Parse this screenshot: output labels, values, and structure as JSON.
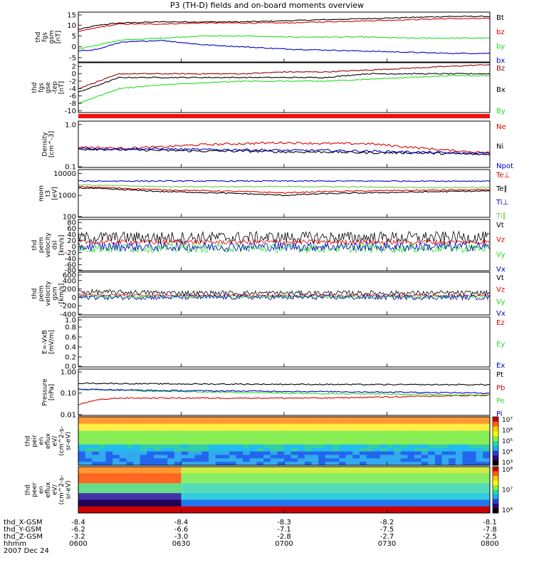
{
  "title": "P3 (TH-D) fields and on-board moments overview",
  "colors": {
    "black": "#000000",
    "red": "#dd0000",
    "green": "#22dd22",
    "blue": "#0000cc",
    "darkred": "#990000",
    "lightgreen": "#66cc44"
  },
  "chart_data": [
    {
      "type": "line",
      "ylabel": [
        "thd",
        "fgs",
        "gsm",
        "[nT]"
      ],
      "yticks": [
        "15",
        "10",
        "5",
        "0",
        "-5"
      ],
      "ylim": [
        -7,
        16
      ],
      "legend": [
        {
          "name": "Bt",
          "color": "#000000"
        },
        {
          "name": "bz",
          "color": "#dd0000"
        },
        {
          "name": "by",
          "color": "#22dd22"
        },
        {
          "name": "bx",
          "color": "#0000cc"
        }
      ],
      "series": [
        {
          "name": "Bt",
          "color": "#000000",
          "x": [
            0,
            0.05,
            0.1,
            0.2,
            0.3,
            0.4,
            0.5,
            0.6,
            0.7,
            0.8,
            0.9,
            1
          ],
          "y": [
            8,
            10,
            11,
            11.5,
            11.5,
            11.5,
            12,
            12.5,
            13,
            13.5,
            14,
            14
          ]
        },
        {
          "name": "bz",
          "color": "#dd0000",
          "x": [
            0,
            0.05,
            0.1,
            0.2,
            0.3,
            0.4,
            0.5,
            0.6,
            0.7,
            0.8,
            0.9,
            1
          ],
          "y": [
            7,
            9,
            10.5,
            10.5,
            11,
            11,
            11,
            11.5,
            12,
            12.5,
            13,
            13
          ]
        },
        {
          "name": "by",
          "color": "#22dd22",
          "x": [
            0,
            0.05,
            0.1,
            0.2,
            0.3,
            0.4,
            0.5,
            0.6,
            0.7,
            0.8,
            0.9,
            1
          ],
          "y": [
            -1,
            1,
            3,
            4,
            5,
            5,
            4.5,
            4.5,
            4.5,
            4,
            4,
            4
          ]
        },
        {
          "name": "bx",
          "color": "#0000cc",
          "x": [
            0,
            0.05,
            0.1,
            0.2,
            0.3,
            0.4,
            0.5,
            0.6,
            0.7,
            0.8,
            0.9,
            1
          ],
          "y": [
            -2,
            -1,
            2,
            3,
            1,
            0,
            -1,
            -1.5,
            -2,
            -2.5,
            -3,
            -3
          ]
        }
      ]
    },
    {
      "type": "line",
      "ylabel": [
        "thd",
        "fgs",
        "gse",
        "-tep",
        "[nT]"
      ],
      "yticks": [
        "2",
        "0",
        "-2",
        "-4",
        "-6",
        "-8",
        "-10"
      ],
      "ylim": [
        -10.5,
        3
      ],
      "legend": [
        {
          "name": "Bz",
          "color": "#990000"
        },
        {
          "name": "Bx",
          "color": "#000000"
        },
        {
          "name": "By",
          "color": "#22dd22"
        }
      ],
      "series": [
        {
          "name": "Bz",
          "color": "#990000",
          "x": [
            0,
            0.05,
            0.1,
            0.2,
            0.3,
            0.4,
            0.5,
            0.6,
            0.7,
            0.8,
            0.9,
            1
          ],
          "y": [
            -4,
            -2,
            0,
            0,
            0,
            0,
            0.5,
            0.5,
            1,
            1.5,
            2,
            2.5
          ]
        },
        {
          "name": "Bx",
          "color": "#000000",
          "x": [
            0,
            0.05,
            0.1,
            0.2,
            0.3,
            0.4,
            0.5,
            0.6,
            0.7,
            0.8,
            0.9,
            1
          ],
          "y": [
            -5,
            -3,
            -1,
            -1,
            -1,
            -1,
            -1,
            -1,
            0,
            0,
            0,
            0
          ]
        },
        {
          "name": "By",
          "color": "#22dd22",
          "x": [
            0,
            0.05,
            0.1,
            0.2,
            0.3,
            0.4,
            0.5,
            0.6,
            0.7,
            0.8,
            0.9,
            1
          ],
          "y": [
            -8,
            -6,
            -4,
            -3,
            -2.5,
            -2,
            -2,
            -2,
            -1.5,
            -1,
            -0.5,
            -0.5
          ]
        }
      ]
    },
    {
      "type": "line",
      "log": true,
      "ylabel": [
        "Density",
        "[cm^-3]"
      ],
      "yticks": [
        "1.0",
        "0.1"
      ],
      "ylim": [
        0.1,
        1.2
      ],
      "legend": [
        {
          "name": "Ne",
          "color": "#dd0000"
        },
        {
          "name": "Ni",
          "color": "#000000"
        },
        {
          "name": "Npot",
          "color": "#0000cc"
        }
      ],
      "series": [
        {
          "name": "Ne",
          "color": "#dd0000",
          "x": [
            0,
            0.1,
            0.2,
            0.3,
            0.4,
            0.5,
            0.6,
            0.7,
            0.8,
            0.9,
            1
          ],
          "y": [
            0.3,
            0.28,
            0.3,
            0.34,
            0.36,
            0.38,
            0.36,
            0.36,
            0.3,
            0.25,
            0.22
          ]
        },
        {
          "name": "Ni",
          "color": "#000000",
          "x": [
            0,
            0.1,
            0.2,
            0.3,
            0.4,
            0.5,
            0.6,
            0.7,
            0.8,
            0.9,
            1
          ],
          "y": [
            0.27,
            0.26,
            0.25,
            0.24,
            0.24,
            0.23,
            0.23,
            0.22,
            0.22,
            0.21,
            0.2
          ]
        },
        {
          "name": "Npot",
          "color": "#0000cc",
          "x": [
            0,
            0.1,
            0.2,
            0.3,
            0.4,
            0.5,
            0.6,
            0.7,
            0.8,
            0.9,
            1
          ],
          "y": [
            0.28,
            0.27,
            0.27,
            0.26,
            0.26,
            0.25,
            0.25,
            0.24,
            0.23,
            0.22,
            0.21
          ]
        }
      ]
    },
    {
      "type": "line",
      "log": true,
      "ylabel": [
        "mom",
        "t3",
        "[eV]"
      ],
      "yticks": [
        "10000",
        "1000",
        "100"
      ],
      "ylim": [
        100,
        15000
      ],
      "legend": [
        {
          "name": "Te⊥",
          "color": "#dd0000"
        },
        {
          "name": "Te∥",
          "color": "#000000"
        },
        {
          "name": "Ti⊥",
          "color": "#0000cc"
        },
        {
          "name": "Ti∥",
          "color": "#66cc44"
        }
      ],
      "series": [
        {
          "name": "Te⊥",
          "color": "#dd0000",
          "x": [
            0,
            0.2,
            0.4,
            0.5,
            0.6,
            0.8,
            1
          ],
          "y": [
            2500,
            1800,
            1500,
            1300,
            1500,
            1700,
            1800
          ]
        },
        {
          "name": "Te∥",
          "color": "#000000",
          "x": [
            0,
            0.2,
            0.4,
            0.5,
            0.6,
            0.8,
            1
          ],
          "y": [
            2200,
            1500,
            1200,
            1000,
            1200,
            1400,
            1600
          ]
        },
        {
          "name": "Ti⊥",
          "color": "#0000cc",
          "x": [
            0,
            0.2,
            0.4,
            0.5,
            0.6,
            0.8,
            1
          ],
          "y": [
            4500,
            4500,
            4500,
            4500,
            4500,
            4500,
            4500
          ]
        },
        {
          "name": "Ti∥",
          "color": "#66cc44",
          "x": [
            0,
            0.2,
            0.4,
            0.5,
            0.6,
            0.8,
            1
          ],
          "y": [
            3000,
            2500,
            2500,
            2500,
            2500,
            2300,
            2300
          ]
        }
      ]
    },
    {
      "type": "line",
      "noisy": true,
      "ylabel": [
        "thd",
        "peim",
        "velocity",
        "dsl",
        "[km/s]"
      ],
      "yticks": [
        "80",
        "60",
        "40",
        "20",
        "0",
        "-20",
        "-40",
        "-60",
        "-80"
      ],
      "ylim": [
        -80,
        90
      ],
      "legend": [
        {
          "name": "Vt",
          "color": "#000000"
        },
        {
          "name": "Vz",
          "color": "#dd0000"
        },
        {
          "name": "Vy",
          "color": "#22dd22"
        },
        {
          "name": "Vx",
          "color": "#0000cc"
        }
      ],
      "series": [
        {
          "name": "Vt",
          "color": "#000000",
          "x": [
            0,
            1
          ],
          "y": [
            30,
            30
          ],
          "noise": 20
        },
        {
          "name": "Vz",
          "color": "#dd0000",
          "x": [
            0,
            1
          ],
          "y": [
            15,
            15
          ],
          "noise": 8
        },
        {
          "name": "Vy",
          "color": "#22dd22",
          "x": [
            0,
            1
          ],
          "y": [
            -5,
            -5
          ],
          "noise": 15
        },
        {
          "name": "Vx",
          "color": "#0000cc",
          "x": [
            0,
            1
          ],
          "y": [
            0,
            0
          ],
          "noise": 15
        }
      ]
    },
    {
      "type": "line",
      "noisy": true,
      "ylabel": [
        "thd",
        "peim",
        "velocity",
        "gsm",
        "[km/s]"
      ],
      "yticks": [
        "600",
        "400",
        "200",
        "0",
        "-200",
        "-400"
      ],
      "ylim": [
        -420,
        600
      ],
      "legend": [
        {
          "name": "Vt",
          "color": "#000000"
        },
        {
          "name": "Vz",
          "color": "#dd0000"
        },
        {
          "name": "Vy",
          "color": "#22dd22"
        },
        {
          "name": "Vx",
          "color": "#0000cc"
        }
      ],
      "series": [
        {
          "name": "Vt",
          "color": "#000000",
          "x": [
            0,
            0.3,
            1
          ],
          "y": [
            130,
            100,
            100
          ],
          "noise": 60
        },
        {
          "name": "Vz",
          "color": "#dd0000",
          "x": [
            0,
            0.3,
            1
          ],
          "y": [
            60,
            40,
            40
          ],
          "noise": 30
        },
        {
          "name": "Vy",
          "color": "#22dd22",
          "x": [
            0,
            0.3,
            1
          ],
          "y": [
            20,
            10,
            10
          ],
          "noise": 40
        },
        {
          "name": "Vx",
          "color": "#0000cc",
          "x": [
            0,
            0.3,
            1
          ],
          "y": [
            0,
            0,
            0
          ],
          "noise": 60
        }
      ]
    },
    {
      "type": "line",
      "ylabel": [
        "E=-VxB",
        "[mV/m]"
      ],
      "yticks": [
        "1.0",
        "0.8",
        "0.6",
        "0.4",
        "0.2",
        "0.0"
      ],
      "ylim": [
        0,
        1
      ],
      "legend": [
        {
          "name": "Ez",
          "color": "#dd0000"
        },
        {
          "name": "Ey",
          "color": "#22dd22"
        },
        {
          "name": "Ex",
          "color": "#0000cc"
        }
      ],
      "series": []
    },
    {
      "type": "line",
      "log": true,
      "ylabel": [
        "Pressure",
        "[nPa]"
      ],
      "yticks": [
        "1.00",
        "0.10",
        "0.01"
      ],
      "ylim": [
        0.01,
        1.2
      ],
      "legend": [
        {
          "name": "Pt",
          "color": "#000000"
        },
        {
          "name": "Pb",
          "color": "#dd0000"
        },
        {
          "name": "Pe",
          "color": "#22dd22"
        },
        {
          "name": "Pi",
          "color": "#0000cc"
        }
      ],
      "series": [
        {
          "name": "Pt",
          "color": "#000000",
          "x": [
            0,
            0.2,
            0.5,
            0.8,
            1
          ],
          "y": [
            0.28,
            0.26,
            0.25,
            0.24,
            0.24
          ]
        },
        {
          "name": "Pb",
          "color": "#dd0000",
          "x": [
            0,
            0.05,
            0.1,
            0.2,
            0.4,
            0.6,
            0.8,
            1
          ],
          "y": [
            0.03,
            0.05,
            0.06,
            0.06,
            0.06,
            0.06,
            0.07,
            0.08
          ]
        },
        {
          "name": "Pe",
          "color": "#22dd22",
          "x": [
            0,
            0.2,
            0.5,
            0.8,
            1
          ],
          "y": [
            0.15,
            0.12,
            0.1,
            0.09,
            0.08
          ]
        },
        {
          "name": "Pi",
          "color": "#0000cc",
          "x": [
            0,
            0.2,
            0.5,
            0.8,
            1
          ],
          "y": [
            0.15,
            0.13,
            0.12,
            0.11,
            0.1
          ]
        }
      ]
    },
    {
      "type": "heatmap",
      "ylabel": [
        "thd",
        "peir",
        "en",
        "eflux",
        "eV/",
        "(cm^2-s-",
        "sr-eV)"
      ],
      "yticks": [
        "10000",
        "1000",
        "100",
        "10"
      ],
      "colorbar_ticks": [
        "10⁷",
        "10⁶",
        "10⁵",
        "10⁴",
        "10³"
      ]
    },
    {
      "type": "heatmap",
      "ylabel": [
        "thd",
        "peer",
        "en",
        "eflux",
        "eV/",
        "(cm^2-s-",
        "sr-eV)"
      ],
      "yticks": [
        "10000",
        "1000",
        "100",
        "10"
      ],
      "colorbar_ticks": [
        "10⁸",
        "10⁷",
        "10⁶"
      ]
    }
  ],
  "footer": {
    "rows": [
      {
        "label": "thd_X-GSM",
        "values": [
          "-8.4",
          "-8.4",
          "-8.3",
          "-8.2",
          "-8.1"
        ]
      },
      {
        "label": "thd_Y-GSM",
        "values": [
          "-6.2",
          "-6.6",
          "-7.1",
          "-7.5",
          "-7.8"
        ]
      },
      {
        "label": "thd_Z-GSM",
        "values": [
          "-3.2",
          "-3.0",
          "-2.8",
          "-2.7",
          "-2.5"
        ]
      },
      {
        "label": "hhmm",
        "values": [
          "0600",
          "0630",
          "0700",
          "0730",
          "0800"
        ]
      }
    ],
    "date": "2007 Dec 24"
  }
}
